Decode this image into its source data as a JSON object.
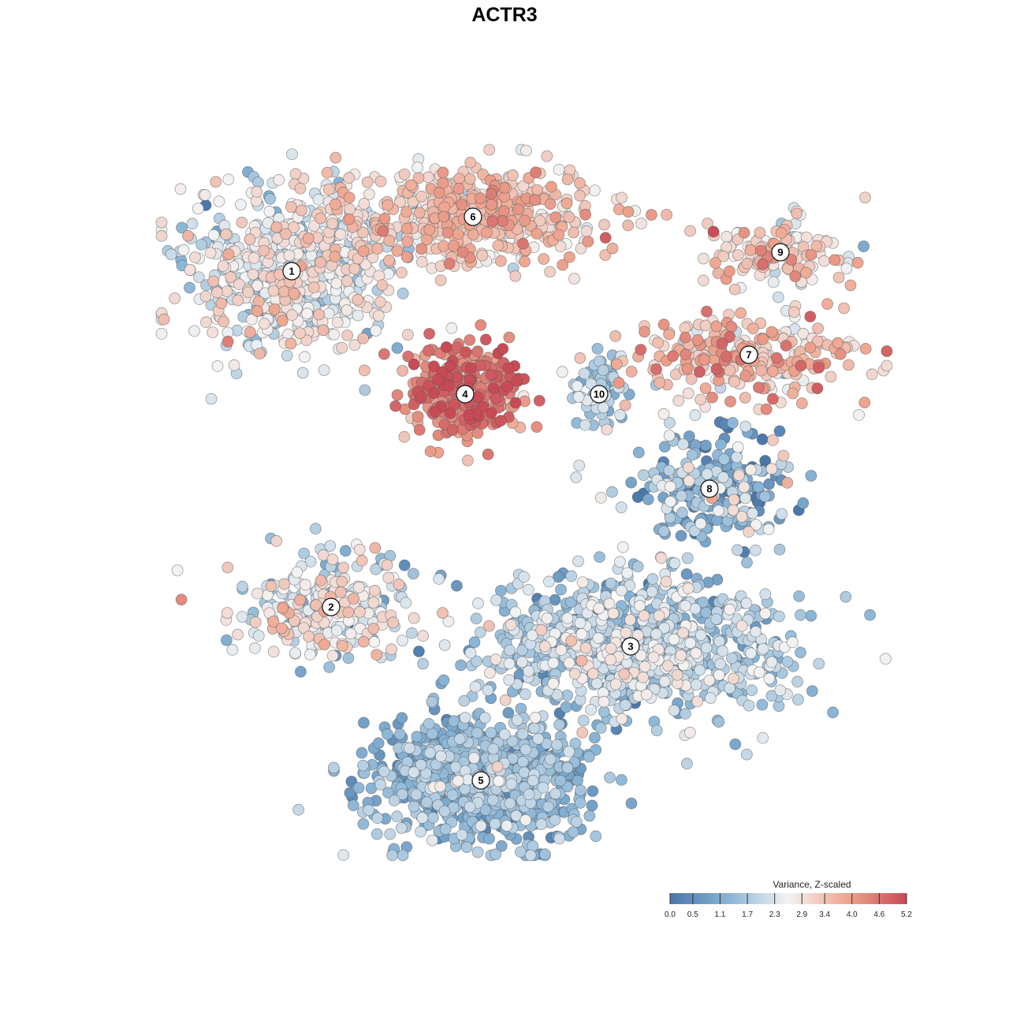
{
  "chart_data": {
    "type": "scatter",
    "title": "ACTR3",
    "xlabel": "",
    "ylabel": "",
    "grid": false,
    "legend": {
      "title": "Variance, Z-scaled",
      "placement": "bottom-right",
      "range": [
        0.0,
        5.2
      ],
      "ticks": [
        "0.0",
        "0.5",
        "1.1",
        "1.7",
        "2.3",
        "2.9",
        "3.4",
        "4.0",
        "4.6",
        "5.2"
      ]
    },
    "colors": {
      "low": "#4a77aa",
      "mid": "#f3f3f3",
      "high": "#c84a55",
      "point_stroke": "#555555"
    },
    "clusters": [
      {
        "label": "1",
        "center": [
          370,
          344
        ],
        "spread": [
          150,
          120
        ],
        "count": 620,
        "mean": 2.4,
        "sd": 0.6
      },
      {
        "label": "6",
        "center": [
          600,
          275
        ],
        "spread": [
          190,
          70
        ],
        "count": 520,
        "mean": 3.3,
        "sd": 0.5
      },
      {
        "label": "4",
        "center": [
          590,
          500
        ],
        "spread": [
          85,
          65
        ],
        "count": 300,
        "mean": 4.4,
        "sd": 0.55
      },
      {
        "label": "10",
        "center": [
          760,
          500
        ],
        "spread": [
          40,
          55
        ],
        "count": 80,
        "mean": 1.7,
        "sd": 0.5
      },
      {
        "label": "9",
        "center": [
          990,
          320
        ],
        "spread": [
          100,
          50
        ],
        "count": 140,
        "mean": 3.0,
        "sd": 0.6
      },
      {
        "label": "7",
        "center": [
          950,
          450
        ],
        "spread": [
          170,
          60
        ],
        "count": 260,
        "mean": 3.4,
        "sd": 0.7
      },
      {
        "label": "8",
        "center": [
          900,
          620
        ],
        "spread": [
          110,
          70
        ],
        "count": 260,
        "mean": 1.2,
        "sd": 0.9
      },
      {
        "label": "2",
        "center": [
          420,
          770
        ],
        "spread": [
          120,
          70
        ],
        "count": 260,
        "mean": 2.4,
        "sd": 0.7
      },
      {
        "label": "3",
        "center": [
          800,
          820
        ],
        "spread": [
          220,
          100
        ],
        "count": 900,
        "mean": 1.8,
        "sd": 0.6
      },
      {
        "label": "5",
        "center": [
          610,
          990
        ],
        "spread": [
          150,
          90
        ],
        "count": 800,
        "mean": 1.3,
        "sd": 0.5
      }
    ]
  }
}
